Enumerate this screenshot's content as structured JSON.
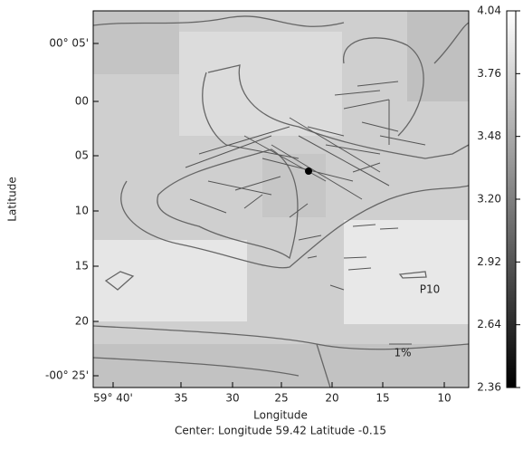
{
  "map": {
    "x_axis": {
      "label": "Longitude",
      "ticks": [
        "59° 40'",
        "35",
        "30",
        "25",
        "20",
        "15",
        "10"
      ]
    },
    "y_axis": {
      "label": "Latitude",
      "ticks": [
        "00° 05'",
        "00",
        "05",
        "10",
        "15",
        "20",
        "-00° 25'"
      ]
    },
    "colorbar": {
      "lim": [
        2.36,
        4.04
      ],
      "ticks": [
        {
          "value": 4.04,
          "label": "4.04"
        },
        {
          "value": 3.76,
          "label": "3.76"
        },
        {
          "value": 3.48,
          "label": "3.48"
        },
        {
          "value": 3.2,
          "label": "3.20"
        },
        {
          "value": 2.92,
          "label": "2.92"
        },
        {
          "value": 2.64,
          "label": "2.64"
        },
        {
          "value": 2.36,
          "label": "2.36"
        }
      ]
    },
    "annotations": {
      "site": "P10",
      "scale": "1%"
    },
    "footer": "Center:  Longitude 59.42 Latitude -0.15"
  }
}
